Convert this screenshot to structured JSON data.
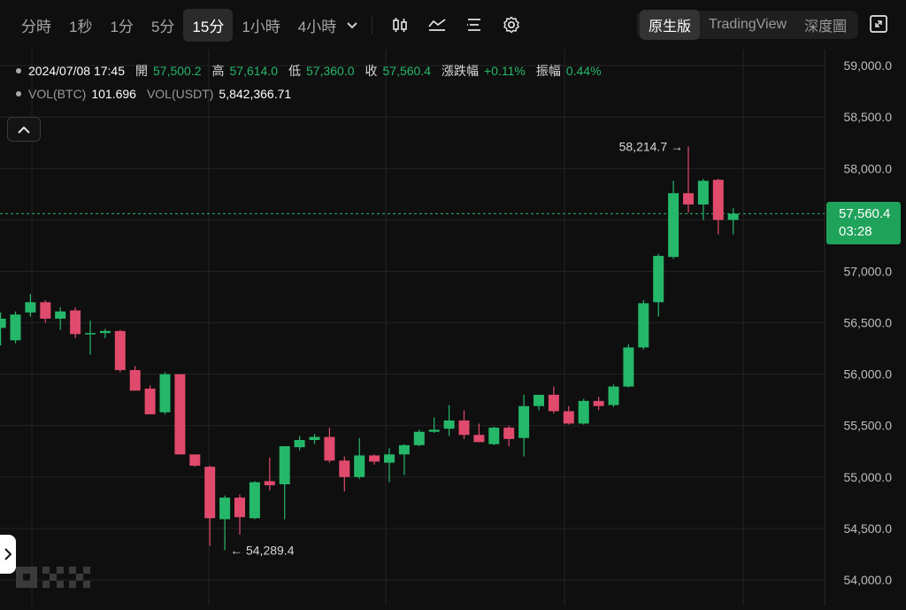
{
  "toolbar": {
    "timeframes": [
      "分時",
      "1秒",
      "1分",
      "5分",
      "15分",
      "1小時",
      "4小時"
    ],
    "active_timeframe": "15分",
    "icons": [
      "candlestick-icon",
      "indicator-icon",
      "list-icon",
      "settings-icon"
    ],
    "views": [
      "原生版",
      "TradingView",
      "深度圖"
    ],
    "active_view": "原生版",
    "fullscreen_icon": "expand-icon"
  },
  "info": {
    "datetime": "2024/07/08 17:45",
    "open_label": "開",
    "open": "57,500.2",
    "high_label": "高",
    "high": "57,614.0",
    "low_label": "低",
    "low": "57,360.0",
    "close_label": "收",
    "close": "57,560.4",
    "change_label": "漲跌幅",
    "change": "+0.11%",
    "amplitude_label": "振幅",
    "amplitude": "0.44%",
    "vol_btc_label": "VOL(BTC)",
    "vol_btc": "101.696",
    "vol_usdt_label": "VOL(USDT)",
    "vol_usdt": "5,842,366.71"
  },
  "last_price": {
    "price": "57,560.4",
    "countdown": "03:28"
  },
  "colors": {
    "up": "#25b86a",
    "down": "#e04a6c",
    "bg": "#0f0f0f",
    "grid": "#232323"
  },
  "logo": "OKX",
  "chart_data": {
    "type": "candlestick",
    "y_ticks": [
      "59,000.0",
      "58,500.0",
      "58,000.0",
      "57,500.0",
      "57,000.0",
      "56,500.0",
      "56,000.0",
      "55,500.0",
      "55,000.0",
      "54,500.0",
      "54,000.0"
    ],
    "ylim": [
      53900,
      59100
    ],
    "high_marker": "58,214.7",
    "low_marker": "54,289.4",
    "current_price": 57560.4,
    "candles": [
      {
        "o": 56450,
        "h": 56600,
        "l": 56280,
        "c": 56540
      },
      {
        "o": 56330,
        "h": 56610,
        "l": 56300,
        "c": 56580
      },
      {
        "o": 56600,
        "h": 56780,
        "l": 56560,
        "c": 56700
      },
      {
        "o": 56700,
        "h": 56720,
        "l": 56500,
        "c": 56540
      },
      {
        "o": 56540,
        "h": 56650,
        "l": 56430,
        "c": 56610
      },
      {
        "o": 56620,
        "h": 56650,
        "l": 56350,
        "c": 56390
      },
      {
        "o": 56390,
        "h": 56520,
        "l": 56190,
        "c": 56400
      },
      {
        "o": 56400,
        "h": 56440,
        "l": 56350,
        "c": 56420
      },
      {
        "o": 56420,
        "h": 56430,
        "l": 56020,
        "c": 56040
      },
      {
        "o": 56040,
        "h": 56080,
        "l": 55840,
        "c": 55840
      },
      {
        "o": 55860,
        "h": 55890,
        "l": 55620,
        "c": 55610
      },
      {
        "o": 55630,
        "h": 56020,
        "l": 55610,
        "c": 56000
      },
      {
        "o": 56000,
        "h": 56000,
        "l": 55220,
        "c": 55220
      },
      {
        "o": 55220,
        "h": 55220,
        "l": 55100,
        "c": 55110
      },
      {
        "o": 55100,
        "h": 55110,
        "l": 54330,
        "c": 54600
      },
      {
        "o": 54590,
        "h": 54820,
        "l": 54289.4,
        "c": 54800
      },
      {
        "o": 54800,
        "h": 54830,
        "l": 54440,
        "c": 54610
      },
      {
        "o": 54600,
        "h": 54960,
        "l": 54590,
        "c": 54950
      },
      {
        "o": 54960,
        "h": 55190,
        "l": 54870,
        "c": 54920
      },
      {
        "o": 54930,
        "h": 55300,
        "l": 54590,
        "c": 55300
      },
      {
        "o": 55290,
        "h": 55400,
        "l": 55260,
        "c": 55360
      },
      {
        "o": 55360,
        "h": 55420,
        "l": 55320,
        "c": 55390
      },
      {
        "o": 55390,
        "h": 55480,
        "l": 55140,
        "c": 55160
      },
      {
        "o": 55160,
        "h": 55200,
        "l": 54860,
        "c": 55000
      },
      {
        "o": 55000,
        "h": 55380,
        "l": 54980,
        "c": 55210
      },
      {
        "o": 55210,
        "h": 55220,
        "l": 55120,
        "c": 55150
      },
      {
        "o": 55140,
        "h": 55280,
        "l": 54950,
        "c": 55220
      },
      {
        "o": 55220,
        "h": 55320,
        "l": 55020,
        "c": 55310
      },
      {
        "o": 55310,
        "h": 55460,
        "l": 55300,
        "c": 55440
      },
      {
        "o": 55440,
        "h": 55580,
        "l": 55430,
        "c": 55460
      },
      {
        "o": 55470,
        "h": 55700,
        "l": 55400,
        "c": 55550
      },
      {
        "o": 55550,
        "h": 55650,
        "l": 55370,
        "c": 55410
      },
      {
        "o": 55410,
        "h": 55520,
        "l": 55340,
        "c": 55340
      },
      {
        "o": 55320,
        "h": 55490,
        "l": 55310,
        "c": 55480
      },
      {
        "o": 55480,
        "h": 55500,
        "l": 55300,
        "c": 55370
      },
      {
        "o": 55380,
        "h": 55800,
        "l": 55200,
        "c": 55690
      },
      {
        "o": 55690,
        "h": 55800,
        "l": 55650,
        "c": 55800
      },
      {
        "o": 55800,
        "h": 55880,
        "l": 55620,
        "c": 55640
      },
      {
        "o": 55640,
        "h": 55690,
        "l": 55510,
        "c": 55520
      },
      {
        "o": 55520,
        "h": 55760,
        "l": 55510,
        "c": 55740
      },
      {
        "o": 55740,
        "h": 55780,
        "l": 55650,
        "c": 55690
      },
      {
        "o": 55700,
        "h": 55900,
        "l": 55680,
        "c": 55880
      },
      {
        "o": 55880,
        "h": 56290,
        "l": 55870,
        "c": 56260
      },
      {
        "o": 56260,
        "h": 56720,
        "l": 56240,
        "c": 56690
      },
      {
        "o": 56700,
        "h": 57170,
        "l": 56560,
        "c": 57150
      },
      {
        "o": 57140,
        "h": 57880,
        "l": 57120,
        "c": 57760
      },
      {
        "o": 57760,
        "h": 58214.7,
        "l": 57570,
        "c": 57650
      },
      {
        "o": 57650,
        "h": 57900,
        "l": 57500,
        "c": 57880
      },
      {
        "o": 57890,
        "h": 57900,
        "l": 57360,
        "c": 57500
      },
      {
        "o": 57500,
        "h": 57614,
        "l": 57360,
        "c": 57560.4
      }
    ]
  }
}
